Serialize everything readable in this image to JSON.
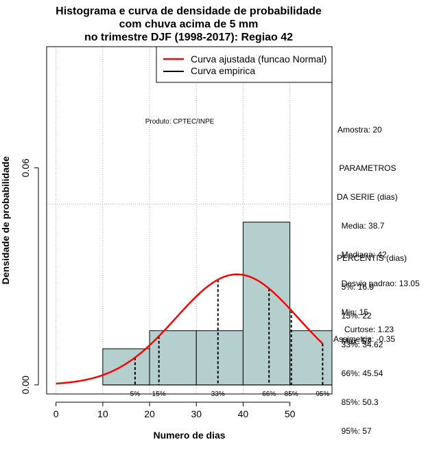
{
  "chart_data": {
    "type": "histogram",
    "title_lines": [
      "Histograma e curva de densidade de probabilidade",
      "com chuva acima de 5 mm",
      "no trimestre DJF (1998-2017): Regiao 42"
    ],
    "xlabel": "Numero de dias",
    "ylabel": "Densidade de probabilidade",
    "xlim": [
      -2,
      59
    ],
    "ylim": [
      -0.0025,
      0.0935
    ],
    "x_ticks": [
      0,
      10,
      20,
      30,
      40,
      50
    ],
    "y_ticks": [
      0.0,
      0.06
    ],
    "y_tick_labels": [
      "0.00",
      "0.06"
    ],
    "grid_x": [
      0,
      10,
      20,
      30,
      40,
      50
    ],
    "grid_y": [
      0.05
    ],
    "bins": [
      {
        "from": 10,
        "to": 20,
        "density": 0.01
      },
      {
        "from": 20,
        "to": 30,
        "density": 0.015
      },
      {
        "from": 30,
        "to": 40,
        "density": 0.015
      },
      {
        "from": 40,
        "to": 50,
        "density": 0.045
      },
      {
        "from": 50,
        "to": 60,
        "density": 0.015
      }
    ],
    "normal_fit": {
      "mean": 38.7,
      "sd": 13.05,
      "x_from": 0,
      "x_to": 57,
      "color": "#ff0000"
    },
    "percentile_lines": [
      {
        "label": "5%",
        "x": 16.9
      },
      {
        "label": "15%",
        "x": 22
      },
      {
        "label": "33%",
        "x": 34.62
      },
      {
        "label": "66%",
        "x": 45.54
      },
      {
        "label": "85%",
        "x": 50.3
      },
      {
        "label": "95%",
        "x": 57
      }
    ],
    "bar_color": "#b5cece",
    "legend": [
      {
        "label": "Curva ajustada (funcao Normal)",
        "color": "#ff0000"
      },
      {
        "label": "Curva empirica",
        "color": "#000000"
      }
    ],
    "legend_position": "top-right",
    "annotation": "Produto: CPTEC/INPE"
  },
  "stats": {
    "sample": "Amostra: 20",
    "params_lines": [
      " PARAMETROS",
      "DA SERIE (dias)",
      "  Media: 38.7",
      "  Mediana: 42",
      "  Desvio padrao: 13.05",
      "  Min: 15",
      "  Max: 57"
    ],
    "percentis_lines": [
      "PERCENTIS (dias)",
      "  5%: 16.9",
      "  15%: 22",
      "  33%: 34.62",
      "  66%: 45.54",
      "  85%: 50.3",
      "  95%: 57"
    ],
    "curtose": "Curtose: 1.23",
    "assimetria": "Assimetria: -0.35"
  }
}
